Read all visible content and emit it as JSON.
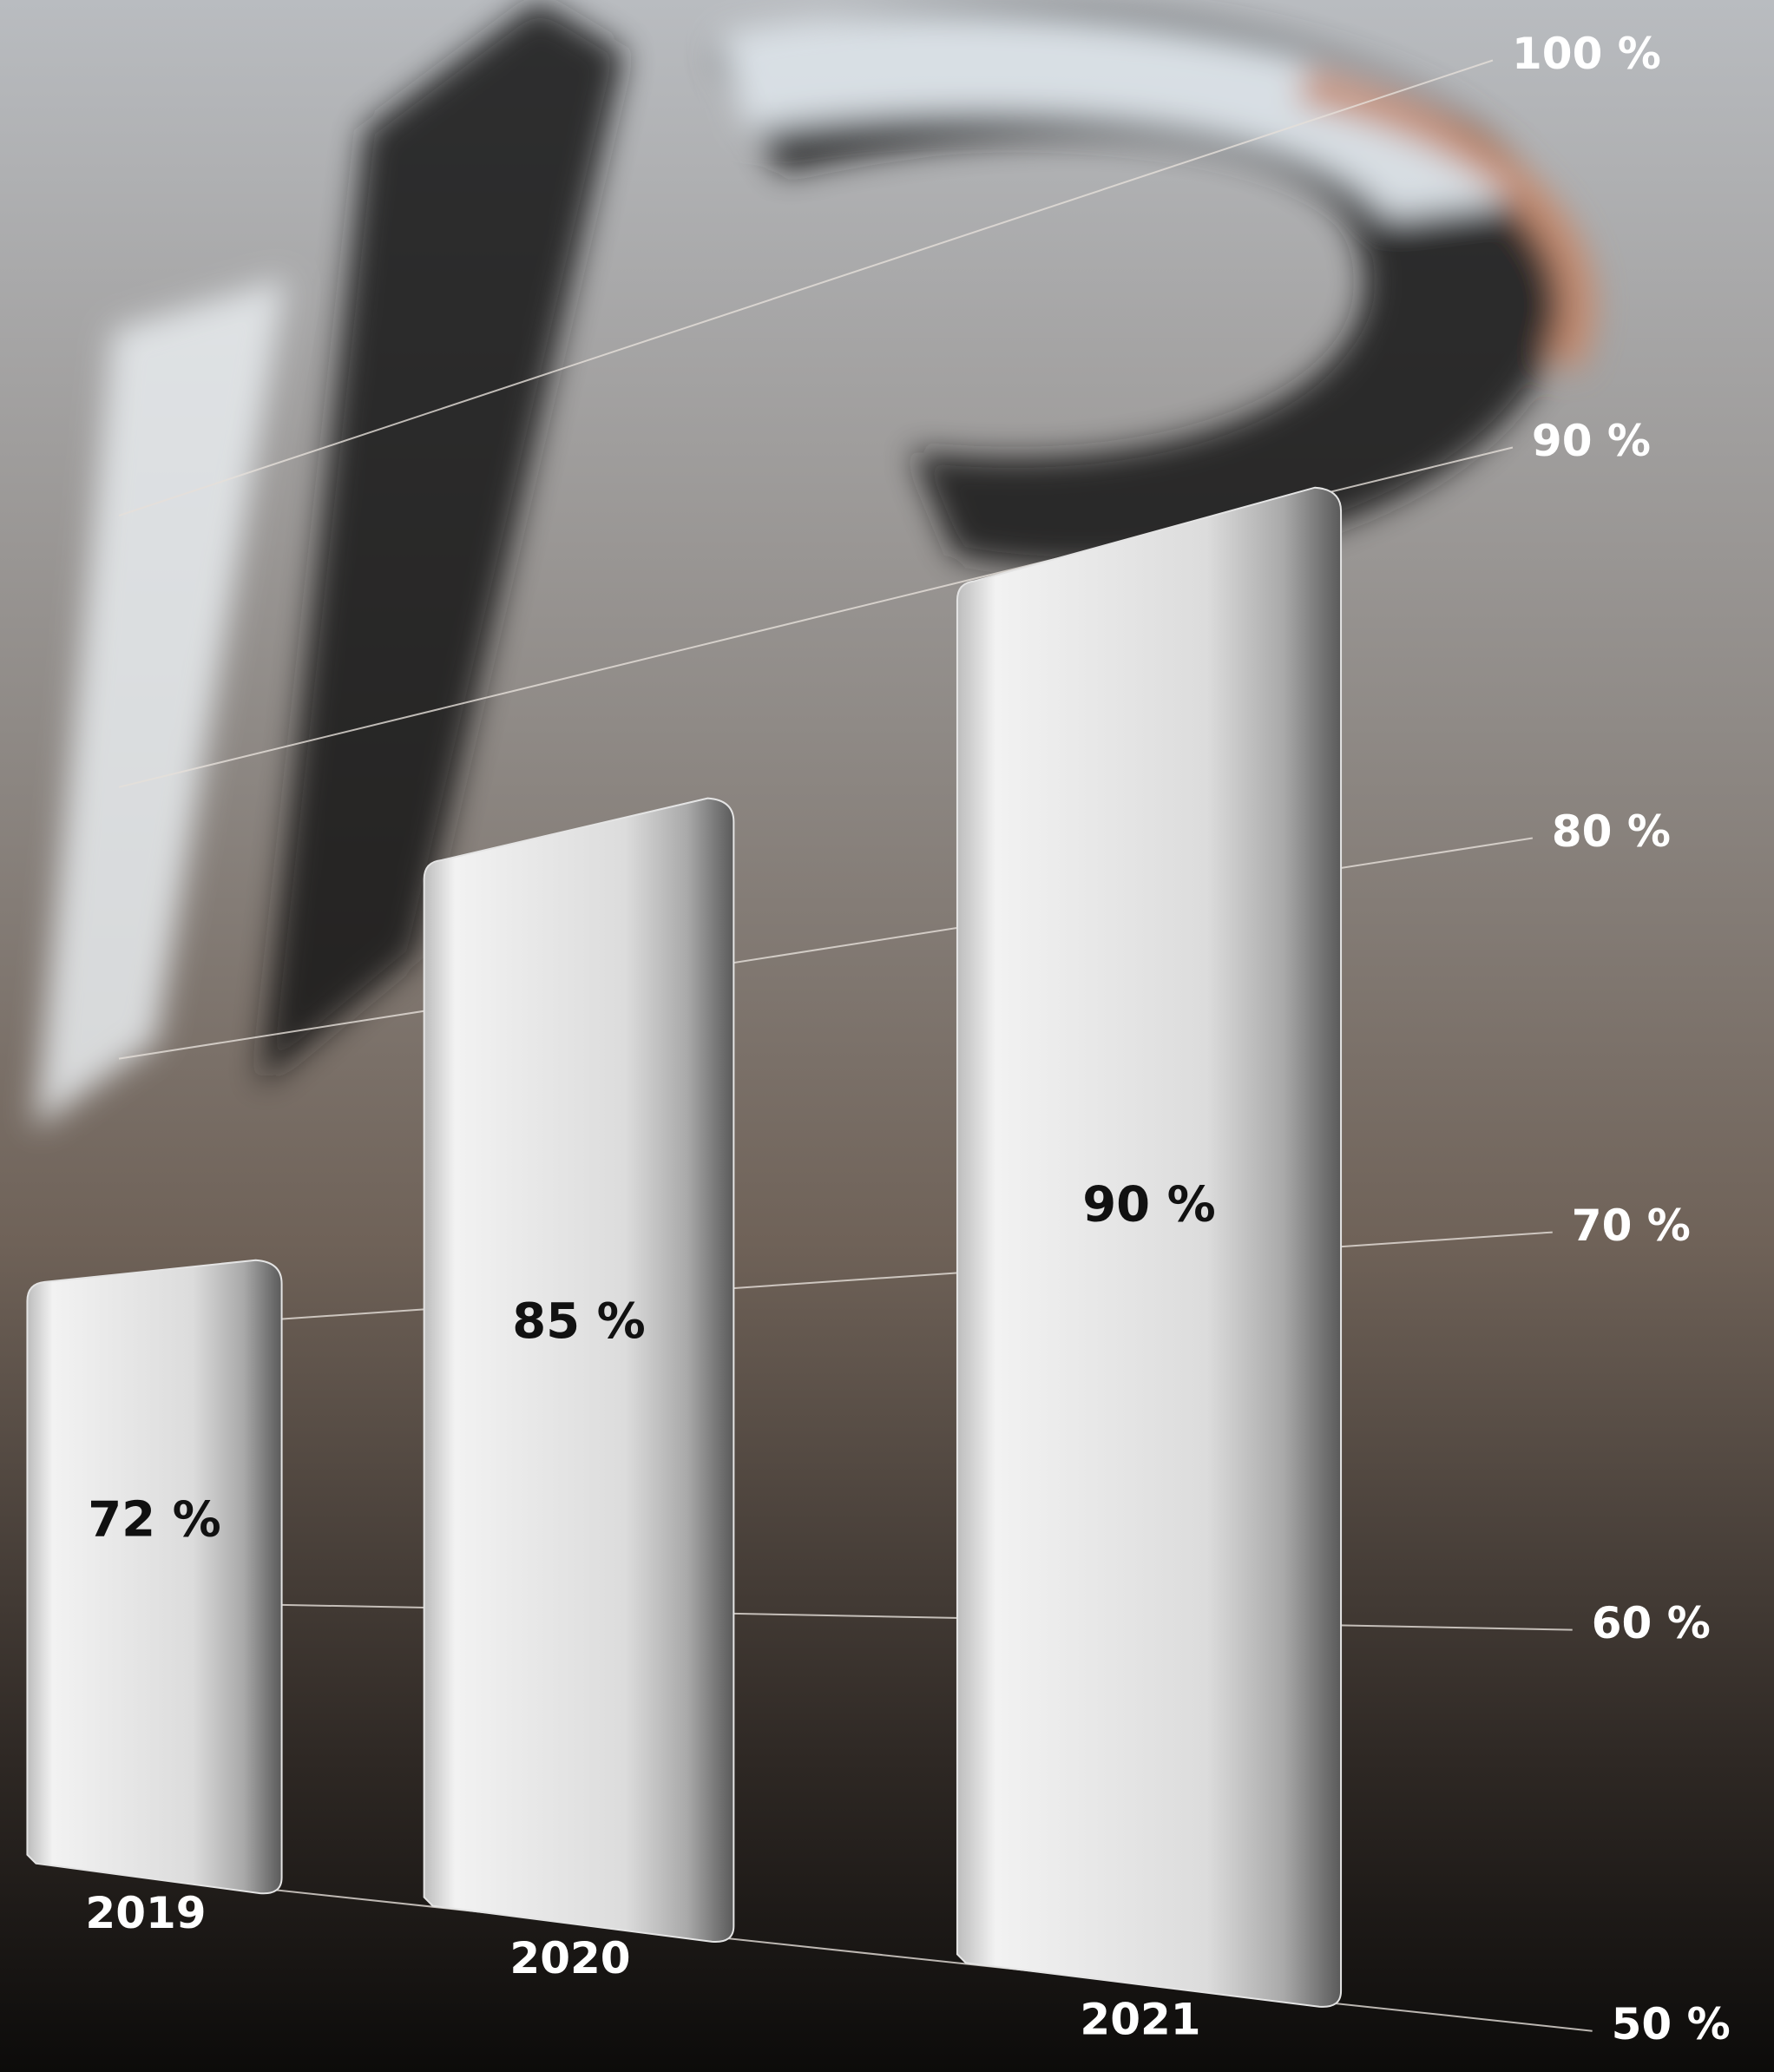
{
  "chart_data": {
    "type": "bar",
    "categories": [
      "2019",
      "2020",
      "2021"
    ],
    "values": [
      72,
      85,
      90
    ],
    "value_labels": [
      "72 %",
      "85 %",
      "90 %"
    ],
    "color": "#e4e4e4",
    "ylim": [
      50,
      100
    ],
    "yticks": [
      {
        "value": 50,
        "label": "50 %"
      },
      {
        "value": 60,
        "label": "60 %"
      },
      {
        "value": 70,
        "label": "70 %"
      },
      {
        "value": 80,
        "label": "80 %"
      },
      {
        "value": 90,
        "label": "90 %"
      },
      {
        "value": 100,
        "label": "100 %"
      }
    ],
    "grid": true
  }
}
